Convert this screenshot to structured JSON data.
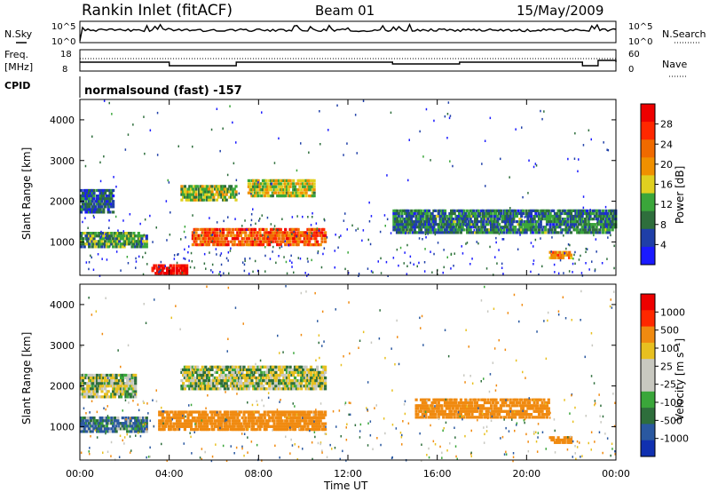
{
  "header": {
    "station": "Rankin Inlet (fitACF)",
    "beam": "Beam 01",
    "date": "15/May/2009"
  },
  "status_panels": {
    "nsky_label": "N.Sky",
    "nsearch_label": "N.Search",
    "freq_label_1": "Freq.",
    "freq_label_2": "[MHz]",
    "nave_label": "Nave",
    "cpid_label": "CPID",
    "cpid_value": "normalsound (fast) -157",
    "noise_left_ticks": [
      "10^5",
      "10^0"
    ],
    "noise_right_ticks": [
      "10^5",
      "10^0"
    ],
    "freq_left_ticks": [
      "18",
      "8"
    ],
    "nave_right_ticks": [
      "60",
      "0"
    ]
  },
  "colorbars": {
    "power": {
      "label": "Power [dB]",
      "ticks": [
        "28",
        "24",
        "20",
        "16",
        "12",
        "8",
        "4"
      ],
      "colors": [
        "#1a1aff",
        "#1f3fa8",
        "#2e6e3c",
        "#3aa63a",
        "#e0d020",
        "#f09000",
        "#f06a00",
        "#ff2800",
        "#ee0000"
      ]
    },
    "velocity": {
      "label": "Velocity [m s⁻¹]",
      "ticks": [
        "1000",
        "500",
        "100",
        "25",
        "-25",
        "-100",
        "-500",
        "-1000"
      ],
      "colors": [
        "#1030b0",
        "#2a58a0",
        "#2e6e3c",
        "#3aa63a",
        "#c8c8c0",
        "#c8c8c0",
        "#e8c020",
        "#f08a10",
        "#ff2800",
        "#ee0000"
      ]
    }
  },
  "x_axis": {
    "label": "Time UT",
    "ticks": [
      "00:00",
      "04:00",
      "08:00",
      "12:00",
      "16:00",
      "20:00",
      "00:00"
    ]
  },
  "y_axis": {
    "label": "Slant Range [km]",
    "ticks": [
      "4000",
      "3000",
      "2000",
      "1000"
    ]
  },
  "chart_data": [
    {
      "type": "heatmap",
      "name": "power",
      "x_range_hours": [
        0,
        24
      ],
      "y_range_km": [
        180,
        4500
      ],
      "colorbar_label": "Power [dB]",
      "bands": [
        {
          "t_start": 0.0,
          "t_end": 1.5,
          "r_low": 1700,
          "r_high": 2300,
          "value_db": 6
        },
        {
          "t_start": 0.0,
          "t_end": 3.0,
          "r_low": 850,
          "r_high": 1250,
          "value_db": 10
        },
        {
          "t_start": 3.2,
          "t_end": 4.8,
          "r_low": 200,
          "r_high": 450,
          "value_db": 28
        },
        {
          "t_start": 4.5,
          "t_end": 7.0,
          "r_low": 2000,
          "r_high": 2400,
          "value_db": 12
        },
        {
          "t_start": 5.0,
          "t_end": 11.0,
          "r_low": 900,
          "r_high": 1350,
          "value_db": 22
        },
        {
          "t_start": 7.5,
          "t_end": 10.5,
          "r_low": 2100,
          "r_high": 2550,
          "value_db": 14
        },
        {
          "t_start": 14.0,
          "t_end": 24.0,
          "r_low": 1200,
          "r_high": 1800,
          "value_db": 8
        },
        {
          "t_start": 21.0,
          "t_end": 22.0,
          "r_low": 580,
          "r_high": 780,
          "value_db": 18
        }
      ]
    },
    {
      "type": "heatmap",
      "name": "velocity",
      "x_range_hours": [
        0,
        24
      ],
      "y_range_km": [
        180,
        4500
      ],
      "colorbar_label": "Velocity [m s⁻¹]",
      "bands": [
        {
          "t_start": 0.0,
          "t_end": 2.5,
          "r_low": 1700,
          "r_high": 2300,
          "value_ms": 0
        },
        {
          "t_start": 4.5,
          "t_end": 11.0,
          "r_low": 1900,
          "r_high": 2500,
          "value_ms": 0
        },
        {
          "t_start": 0.0,
          "t_end": 3.0,
          "r_low": 850,
          "r_high": 1250,
          "value_ms": 100
        },
        {
          "t_start": 3.5,
          "t_end": 11.0,
          "r_low": 900,
          "r_high": 1400,
          "value_ms": -300
        },
        {
          "t_start": 15.0,
          "t_end": 21.0,
          "r_low": 1200,
          "r_high": 1700,
          "value_ms": -250
        },
        {
          "t_start": 21.0,
          "t_end": 22.0,
          "r_low": 580,
          "r_high": 760,
          "value_ms": -200
        }
      ]
    }
  ]
}
